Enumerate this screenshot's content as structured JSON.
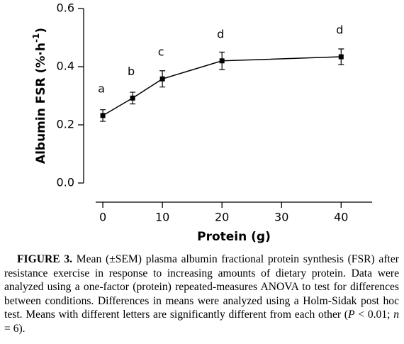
{
  "chart_data": {
    "type": "line",
    "x": [
      0,
      5,
      10,
      20,
      40
    ],
    "series": [
      {
        "color": "#000000",
        "values": [
          0.232,
          0.292,
          0.358,
          0.42,
          0.434
        ],
        "errors": [
          0.02,
          0.02,
          0.028,
          0.03,
          0.027
        ]
      }
    ],
    "letters": [
      "a",
      "b",
      "c",
      "d",
      "d"
    ],
    "xlabel": "Protein (g)",
    "ylabel": {
      "text": "Albumin FSR (%·h",
      "superscript": "-1",
      "suffix": ")"
    },
    "xlim": [
      -1.2,
      45.2
    ],
    "xticks": [
      0,
      10,
      20,
      30,
      40
    ],
    "ylim": [
      0,
      0.6
    ],
    "yticks": [
      {
        "value": 0,
        "label": "0.0"
      },
      0.2,
      0.4,
      0.6
    ]
  },
  "caption": {
    "label": "FIGURE 3.",
    "parts": [
      " Mean (±SEM) plasma albumin fractional protein synthesis (FSR) after resistance exercise in response to increasing amounts of dietary protein. Data were analyzed using a one-factor (protein) repeated-measures ANOVA to test for differences between conditions. Differences in means were analyzed using a Holm-Sidak post hoc test. Means with different letters are significantly different from each other (",
      "P",
      " < 0.01; ",
      "n",
      " = 6)."
    ]
  }
}
